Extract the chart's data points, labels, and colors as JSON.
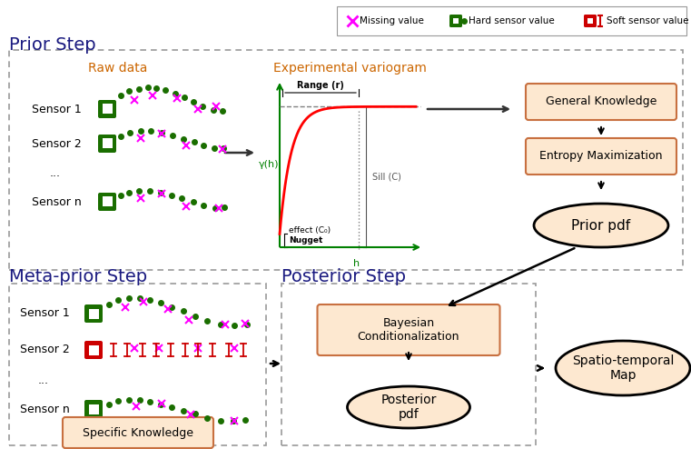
{
  "bg_color": "#ffffff",
  "box_fill": "#fde8d0",
  "box_edge": "#c87040",
  "ellipse_fill": "#fde8d0",
  "ellipse_edge": "#000000",
  "dark_green": "#1a6e00",
  "pink_x_color": "#ff00ff",
  "red_soft": "#cc0000",
  "title_prior": "Prior Step",
  "title_meta": "Meta-prior Step",
  "title_posterior": "Posterior Step",
  "label_raw": "Raw data",
  "label_vario": "Experimental variogram",
  "label_gk": "General Knowledge",
  "label_em": "Entropy Maximization",
  "label_prior_pdf": "Prior pdf",
  "label_bayes": "Bayesian\nConditionalization",
  "label_post_pdf": "Posterior\npdf",
  "label_map": "Spatio-temporal\nMap",
  "label_spec": "Specific Knowledge",
  "leg_miss": "Missing value",
  "leg_hard": "Hard sensor value",
  "leg_soft": "Soft sensor value",
  "title_color": "#1a1a80",
  "text_color": "#333333",
  "arrow_color": "#333333",
  "vario_green": "#008000"
}
